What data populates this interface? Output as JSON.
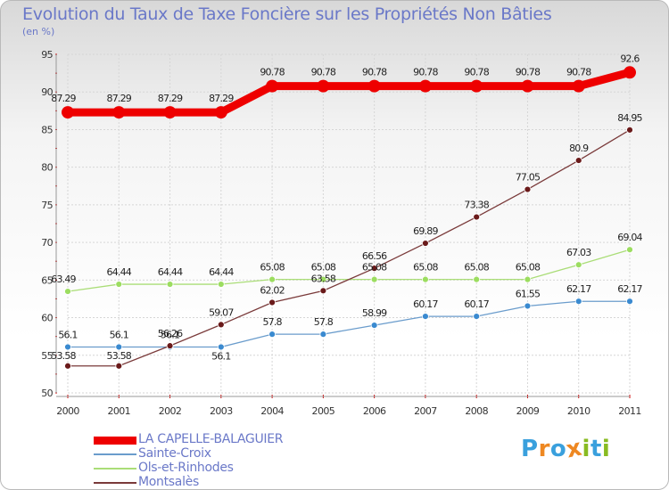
{
  "header": {
    "title": "Evolution du Taux de Taxe Foncière sur les Propriétés Non Bâties",
    "unit": "(en %)"
  },
  "chart_data": {
    "type": "line",
    "title": "Evolution du Taux de Taxe Foncière sur les Propriétés Non Bâties",
    "ylabel": "(en %)",
    "xlabel": "",
    "ylim": [
      50,
      95
    ],
    "yticks": [
      50,
      55,
      60,
      65,
      70,
      75,
      80,
      85,
      90,
      95
    ],
    "categories": [
      "2000",
      "2001",
      "2002",
      "2003",
      "2004",
      "2005",
      "2006",
      "2007",
      "2008",
      "2009",
      "2010",
      "2011"
    ],
    "series": [
      {
        "name": "LA CAPELLE-BALAGUIER",
        "color": "#ee0000",
        "values": [
          87.29,
          87.29,
          87.29,
          87.29,
          90.78,
          90.78,
          90.78,
          90.78,
          90.78,
          90.78,
          90.78,
          92.6
        ],
        "labels": [
          "87.29",
          "87.29",
          "87.29",
          "87.29",
          "90.78",
          "90.78",
          "90.78",
          "90.78",
          "90.78",
          "90.78",
          "90.78",
          "92.6"
        ]
      },
      {
        "name": "Sainte-Croix",
        "color": "#6a9ccc",
        "marker": "#3a8ad0",
        "values": [
          56.1,
          56.1,
          56.1,
          56.1,
          57.8,
          57.8,
          58.99,
          60.17,
          60.17,
          61.55,
          62.17,
          62.17
        ],
        "labels": [
          "56.1",
          "56.1",
          "56.1",
          "56.1",
          "57.8",
          "57.8",
          "58.99",
          "60.17",
          "60.17",
          "61.55",
          "62.17",
          "62.17"
        ]
      },
      {
        "name": "Ols-et-Rinhodes",
        "color": "#aadd77",
        "marker": "#9cdd60",
        "values": [
          63.49,
          64.44,
          64.44,
          64.44,
          65.08,
          65.08,
          65.08,
          65.08,
          65.08,
          65.08,
          67.03,
          69.04
        ],
        "labels": [
          "63.49",
          "64.44",
          "64.44",
          "64.44",
          "65.08",
          "65.08",
          "65.08",
          "65.08",
          "65.08",
          "65.08",
          "67.03",
          "69.04"
        ]
      },
      {
        "name": "Montsalès",
        "color": "#7a3a3a",
        "marker": "#6a1a1a",
        "values": [
          53.58,
          53.58,
          56.26,
          59.07,
          62.02,
          63.58,
          66.56,
          69.89,
          73.38,
          77.05,
          80.9,
          84.95
        ],
        "labels": [
          "53.58",
          "53.58",
          "56.26",
          "59.07",
          "62.02",
          "63.58",
          "66.56",
          "69.89",
          "73.38",
          "77.05",
          "80.9",
          "84.95"
        ]
      }
    ],
    "legend_position": "bottom-left"
  },
  "logo": {
    "letters": [
      "P",
      "r",
      "o",
      "x",
      "i",
      "t",
      "i"
    ],
    "colors": [
      "#3aa0dd",
      "#ee8822",
      "#3aa0dd",
      "#ee8822",
      "#88bb22",
      "#3aa0dd",
      "#88bb22"
    ]
  }
}
